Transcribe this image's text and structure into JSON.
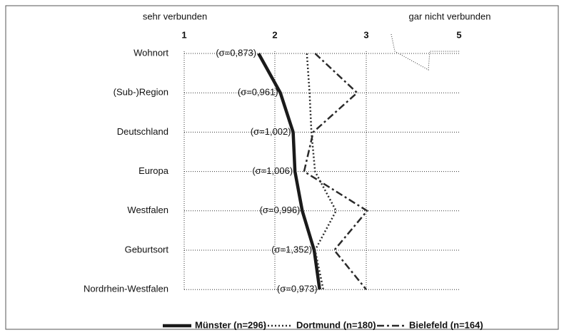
{
  "chart_data": {
    "type": "line",
    "x_label_left": "sehr verbunden",
    "x_label_right": "gar nicht verbunden",
    "categories": [
      "Wohnort",
      "(Sub-)Region",
      "Deutschland",
      "Europa",
      "Westfalen",
      "Geburtsort",
      "Nordrhein-Westfalen"
    ],
    "series": [
      {
        "name": "Münster (n=296)",
        "color": "#1a1a1a",
        "style": "solid",
        "values": [
          1.82,
          2.06,
          2.2,
          2.22,
          2.3,
          2.43,
          2.49
        ]
      },
      {
        "name": "Dortmund (n=180)",
        "color": "#2a2a2a",
        "style": "dotted",
        "values": [
          2.35,
          2.38,
          2.4,
          2.44,
          2.67,
          2.44,
          2.53
        ]
      },
      {
        "name": "Bielefeld (n=164)",
        "color": "#2a2a2a",
        "style": "dashdot",
        "values": [
          2.44,
          2.9,
          2.42,
          2.32,
          3.02,
          2.65,
          3.0
        ]
      }
    ],
    "sigma_labels": [
      "(σ=0,873)",
      "(σ=0,961)",
      "(σ=1,002)",
      "(σ=1,006)",
      "(σ=0,996)",
      "(σ=1,352)",
      "(σ=0,973)"
    ],
    "xlim": [
      1,
      5
    ],
    "xticks": [
      1,
      2,
      3,
      5
    ],
    "grid": true
  }
}
